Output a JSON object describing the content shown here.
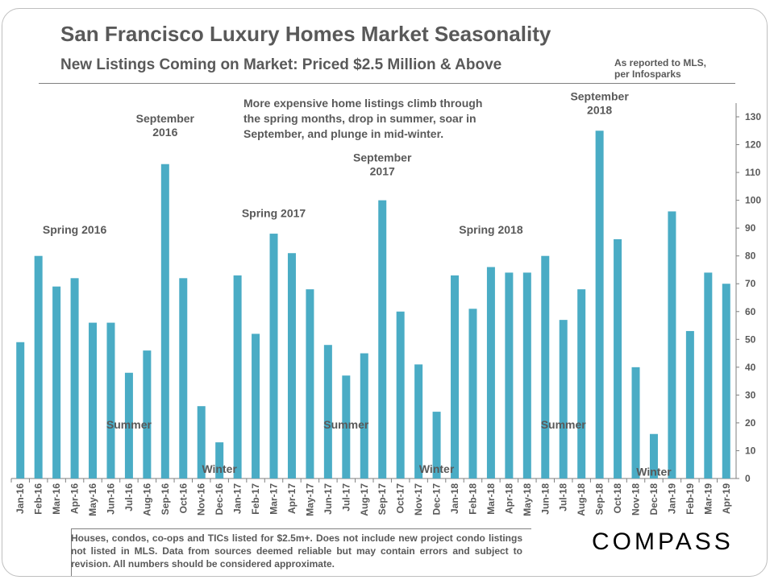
{
  "header": {
    "title": "San Francisco Luxury Homes Market Seasonality",
    "subtitle": "New Listings Coming on Market: Priced $2.5 Million  & Above",
    "source_line1": "As reported to MLS,",
    "source_line2": "per Infosparks"
  },
  "footer": {
    "note": "Houses, condos, co-ops and TICs listed for $2.5m+. Does not include new project condo listings not listed in MLS. Data from sources deemed reliable but may contain errors and subject to revision.  All numbers should be considered approximate.",
    "brand": "COMPASS"
  },
  "colors": {
    "bar": "#4aacc5",
    "text": "#595959",
    "axis": "#7f7f7f"
  },
  "chart_data": {
    "type": "bar",
    "title": "San Francisco Luxury Homes Market Seasonality",
    "xlabel": "",
    "ylabel": "",
    "y_axis_position": "right",
    "ylim": [
      0,
      130
    ],
    "yticks": [
      0,
      10,
      20,
      30,
      40,
      50,
      60,
      70,
      80,
      90,
      100,
      110,
      120,
      130
    ],
    "categories": [
      "Jan-16",
      "Feb-16",
      "Mar-16",
      "Apr-16",
      "May-16",
      "Jun-16",
      "Jul-16",
      "Aug-16",
      "Sep-16",
      "Oct-16",
      "Nov-16",
      "Dec-16",
      "Jan-17",
      "Feb-17",
      "Mar-17",
      "Apr-17",
      "May-17",
      "Jun-17",
      "Jul-17",
      "Aug-17",
      "Sep-17",
      "Oct-17",
      "Nov-17",
      "Dec-17",
      "Jan-18",
      "Feb-18",
      "Mar-18",
      "Apr-18",
      "May-18",
      "Jun-18",
      "Jul-18",
      "Aug-18",
      "Sep-18",
      "Oct-18",
      "Nov-18",
      "Dec-18",
      "Jan-19",
      "Feb-19",
      "Mar-19",
      "Apr-19"
    ],
    "values": [
      49,
      80,
      69,
      72,
      56,
      56,
      38,
      46,
      113,
      72,
      26,
      13,
      73,
      52,
      88,
      81,
      68,
      48,
      37,
      45,
      100,
      60,
      41,
      24,
      73,
      61,
      76,
      74,
      74,
      80,
      57,
      68,
      125,
      86,
      40,
      16,
      96,
      53,
      74,
      70
    ],
    "annotations": [
      {
        "text": "Spring 2016",
        "lines": [
          "Spring 2016"
        ],
        "index": 3,
        "value": 88
      },
      {
        "text": "September 2016",
        "lines": [
          "September",
          "2016"
        ],
        "index": 8,
        "value": 123
      },
      {
        "text": "Summer",
        "lines": [
          "Summer"
        ],
        "index": 6,
        "value": 18
      },
      {
        "text": "Winter",
        "lines": [
          "Winter"
        ],
        "index": 11,
        "value": 2
      },
      {
        "text": "Spring 2017",
        "lines": [
          "Spring 2017"
        ],
        "index": 14,
        "value": 94
      },
      {
        "text": "September 2017",
        "lines": [
          "September",
          "2017"
        ],
        "index": 20,
        "value": 109
      },
      {
        "text": "Summer",
        "lines": [
          "Summer"
        ],
        "index": 18,
        "value": 18
      },
      {
        "text": "Winter",
        "lines": [
          "Winter"
        ],
        "index": 23,
        "value": 2
      },
      {
        "text": "Spring 2018",
        "lines": [
          "Spring 2018"
        ],
        "index": 26,
        "value": 88
      },
      {
        "text": "September 2018",
        "lines": [
          "September",
          "2018"
        ],
        "index": 32,
        "value": 131
      },
      {
        "text": "Summer",
        "lines": [
          "Summer"
        ],
        "index": 30,
        "value": 18
      },
      {
        "text": "Winter",
        "lines": [
          "Winter"
        ],
        "index": 35,
        "value": 1
      }
    ],
    "commentary": [
      "More expensive home listings climb through",
      "the spring months, drop in summer, soar in",
      "September, and plunge in mid-winter."
    ]
  }
}
